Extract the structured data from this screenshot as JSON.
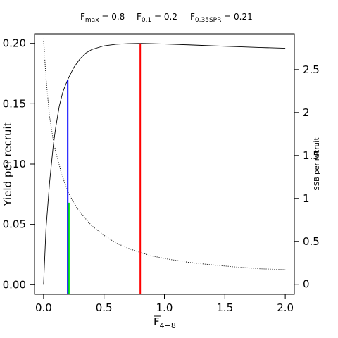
{
  "chart_data": {
    "type": "line",
    "header": [
      {
        "symbol": "F",
        "sub": "max",
        "value": " = 0.8"
      },
      {
        "symbol": "F",
        "sub": "0.1",
        "value": " = 0.2"
      },
      {
        "symbol": "F",
        "sub": "0.35SPR",
        "value": " = 0.21"
      }
    ],
    "xlabel": {
      "symbol": "F",
      "sub": "4−8",
      "overline": true
    },
    "ylabel": "Yield per recruit",
    "y2label": "SSB per recruit",
    "xlim": [
      0,
      2.0
    ],
    "ylim": [
      0,
      0.2
    ],
    "y2lim": [
      0,
      2.8
    ],
    "xticks": [
      0,
      0.5,
      1.0,
      1.5,
      2.0
    ],
    "xtick_labels": [
      "0.0",
      "0.5",
      "1.0",
      "1.5",
      "2.0"
    ],
    "yticks": [
      0,
      0.05,
      0.1,
      0.15,
      0.2
    ],
    "ytick_labels": [
      "0.00",
      "0.05",
      "0.10",
      "0.15",
      "0.20"
    ],
    "y2ticks": [
      0,
      0.5,
      1,
      1.5,
      2,
      2.5
    ],
    "y2tick_labels": [
      "0",
      "0.5",
      "1",
      "1.5",
      "2",
      "2.5"
    ],
    "series": [
      {
        "name": "Yield per recruit",
        "axis": "left",
        "style": "solid",
        "color": "#000000",
        "x": [
          0,
          0.02,
          0.05,
          0.08,
          0.1,
          0.13,
          0.16,
          0.2,
          0.25,
          0.3,
          0.35,
          0.4,
          0.5,
          0.6,
          0.7,
          0.8,
          0.9,
          1.0,
          1.2,
          1.4,
          1.6,
          1.8,
          2.0
        ],
        "y": [
          0,
          0.046,
          0.085,
          0.115,
          0.13,
          0.148,
          0.16,
          0.17,
          0.18,
          0.187,
          0.192,
          0.195,
          0.198,
          0.1993,
          0.1998,
          0.2,
          0.1998,
          0.1995,
          0.1988,
          0.198,
          0.1973,
          0.1966,
          0.196
        ]
      },
      {
        "name": "SSB per recruit",
        "axis": "right",
        "style": "dotted",
        "color": "#000000",
        "x": [
          0,
          0.02,
          0.05,
          0.08,
          0.1,
          0.15,
          0.2,
          0.25,
          0.3,
          0.4,
          0.5,
          0.6,
          0.7,
          0.8,
          0.9,
          1.0,
          1.2,
          1.4,
          1.6,
          1.8,
          2.0
        ],
        "y": [
          2.86,
          2.4,
          1.95,
          1.68,
          1.55,
          1.28,
          1.08,
          0.95,
          0.84,
          0.68,
          0.57,
          0.48,
          0.42,
          0.37,
          0.33,
          0.3,
          0.255,
          0.225,
          0.2,
          0.18,
          0.17
        ]
      }
    ],
    "reference_lines": [
      {
        "name": "F0.35SPR",
        "x": 0.21,
        "y": 0.068,
        "axis": "left",
        "color": "#00ee00"
      },
      {
        "name": "F0.1",
        "x": 0.2,
        "y": 0.17,
        "axis": "left",
        "color": "#0000ff"
      },
      {
        "name": "Fmax",
        "x": 0.8,
        "y": 0.2,
        "axis": "left",
        "color": "#ff0000"
      }
    ],
    "grid": false
  }
}
